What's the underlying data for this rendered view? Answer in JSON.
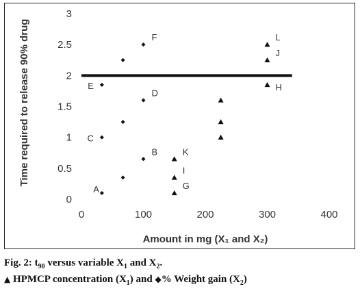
{
  "chart_data": {
    "type": "scatter",
    "ylabel": "Time required to release 90% drug",
    "xlabel": "Amount in mg (X₁ and X₂)",
    "xlim": [
      0,
      400
    ],
    "ylim": [
      0,
      3
    ],
    "xticks": [
      "0",
      "100",
      "200",
      "300",
      "400"
    ],
    "yticks": [
      "0",
      "0.5",
      "1",
      "1.5",
      "2",
      "2.5",
      "3"
    ],
    "grid": false,
    "reference_line": {
      "y": 2,
      "x_range": [
        0,
        340
      ]
    },
    "series": [
      {
        "name": "HPMCP concentration (X₁)",
        "marker": "triangle",
        "points": [
          {
            "x": 150,
            "y": 0.1,
            "label": "G"
          },
          {
            "x": 150,
            "y": 0.35,
            "label": "I"
          },
          {
            "x": 150,
            "y": 0.65,
            "label": "K"
          },
          {
            "x": 225,
            "y": 1.0,
            "label": ""
          },
          {
            "x": 225,
            "y": 1.25,
            "label": ""
          },
          {
            "x": 225,
            "y": 1.6,
            "label": ""
          },
          {
            "x": 300,
            "y": 1.85,
            "label": "H"
          },
          {
            "x": 300,
            "y": 2.25,
            "label": "J"
          },
          {
            "x": 300,
            "y": 2.5,
            "label": "L"
          }
        ]
      },
      {
        "name": "% Weight gain (X₂)",
        "marker": "diamond",
        "points": [
          {
            "x": 33,
            "y": 0.1,
            "label": "A"
          },
          {
            "x": 67,
            "y": 0.35,
            "label": ""
          },
          {
            "x": 100,
            "y": 0.65,
            "label": "B"
          },
          {
            "x": 33,
            "y": 1.0,
            "label": "C"
          },
          {
            "x": 67,
            "y": 1.25,
            "label": ""
          },
          {
            "x": 100,
            "y": 1.6,
            "label": "D"
          },
          {
            "x": 33,
            "y": 1.85,
            "label": "E"
          },
          {
            "x": 67,
            "y": 2.25,
            "label": ""
          },
          {
            "x": 100,
            "y": 2.5,
            "label": "F"
          }
        ]
      }
    ]
  },
  "caption": {
    "line1": {
      "prefix": "Fig. 2: t",
      "t_sub": "90",
      "mid": " versus variable X",
      "x1_sub": "1",
      "and": " and X",
      "x2_sub": "2",
      "end": "."
    },
    "legend": {
      "triangle_symbol": "▲",
      "item1_text": "HPMCP concentration (X",
      "item1_sub": "1",
      "item1_end": ") and",
      "diamond_symbol": "◆",
      "item2_text": "% Weight gain (X",
      "item2_sub": "2",
      "item2_end": ")"
    }
  },
  "colors": {
    "marker": "#111111",
    "line": "#111111",
    "text": "#333333"
  }
}
